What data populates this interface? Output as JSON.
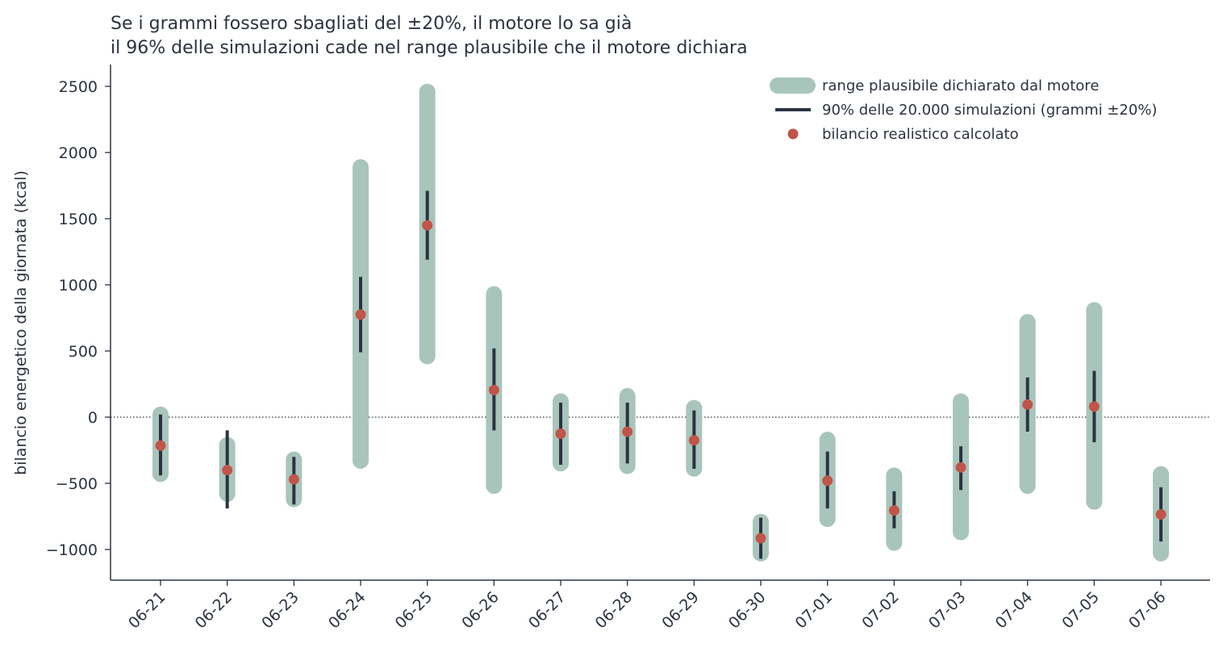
{
  "chart_data": {
    "type": "range",
    "title_lines": [
      "Se i grammi fossero sbagliati del ±20%, il motore lo sa già",
      "il 96% delle simulazioni cade nel range plausibile che il motore dichiara"
    ],
    "xlabel": "",
    "ylabel": "bilancio energetico della giornata (kcal)",
    "ylim": [
      -1230,
      2650
    ],
    "yticks": [
      2500,
      2000,
      1500,
      1000,
      500,
      0,
      -500,
      -1000
    ],
    "ytick_labels": [
      "2500",
      "2000",
      "1500",
      "1000",
      "500",
      "0",
      "−500",
      "−1000"
    ],
    "zero_line": "dotted",
    "grid": false,
    "legend_position": "top-right",
    "colors": {
      "range": "#a8c5bc",
      "sim": "#2b3340",
      "point": "#c0554a",
      "text": "#2b3340"
    },
    "categories": [
      "06-21",
      "06-22",
      "06-23",
      "06-24",
      "06-25",
      "06-26",
      "06-27",
      "06-28",
      "06-29",
      "06-30",
      "07-01",
      "07-02",
      "07-03",
      "07-04",
      "07-05",
      "07-06"
    ],
    "series": [
      {
        "name": "range plausibile dichiarato dal motore",
        "kind": "band",
        "low": [
          -490,
          -640,
          -680,
          -390,
          400,
          -580,
          -410,
          -430,
          -450,
          -1090,
          -830,
          -1010,
          -930,
          -580,
          -700,
          -1090
        ],
        "high": [
          80,
          -150,
          -260,
          1950,
          2520,
          990,
          180,
          220,
          130,
          -730,
          -110,
          -380,
          180,
          780,
          870,
          -370
        ]
      },
      {
        "name": "90% delle 20.000 simulazioni (grammi ±20%)",
        "kind": "interval",
        "low": [
          -440,
          -690,
          -660,
          490,
          1190,
          -100,
          -360,
          -350,
          -390,
          -1070,
          -690,
          -840,
          -550,
          -110,
          -190,
          -940
        ],
        "high": [
          20,
          -100,
          -300,
          1060,
          1710,
          520,
          110,
          110,
          50,
          -760,
          -260,
          -560,
          -220,
          300,
          350,
          -530
        ]
      },
      {
        "name": "bilancio realistico calcolato",
        "kind": "point",
        "values": [
          -215,
          -400,
          -470,
          775,
          1450,
          205,
          -125,
          -110,
          -175,
          -915,
          -480,
          -705,
          -380,
          95,
          80,
          -735
        ]
      }
    ]
  }
}
